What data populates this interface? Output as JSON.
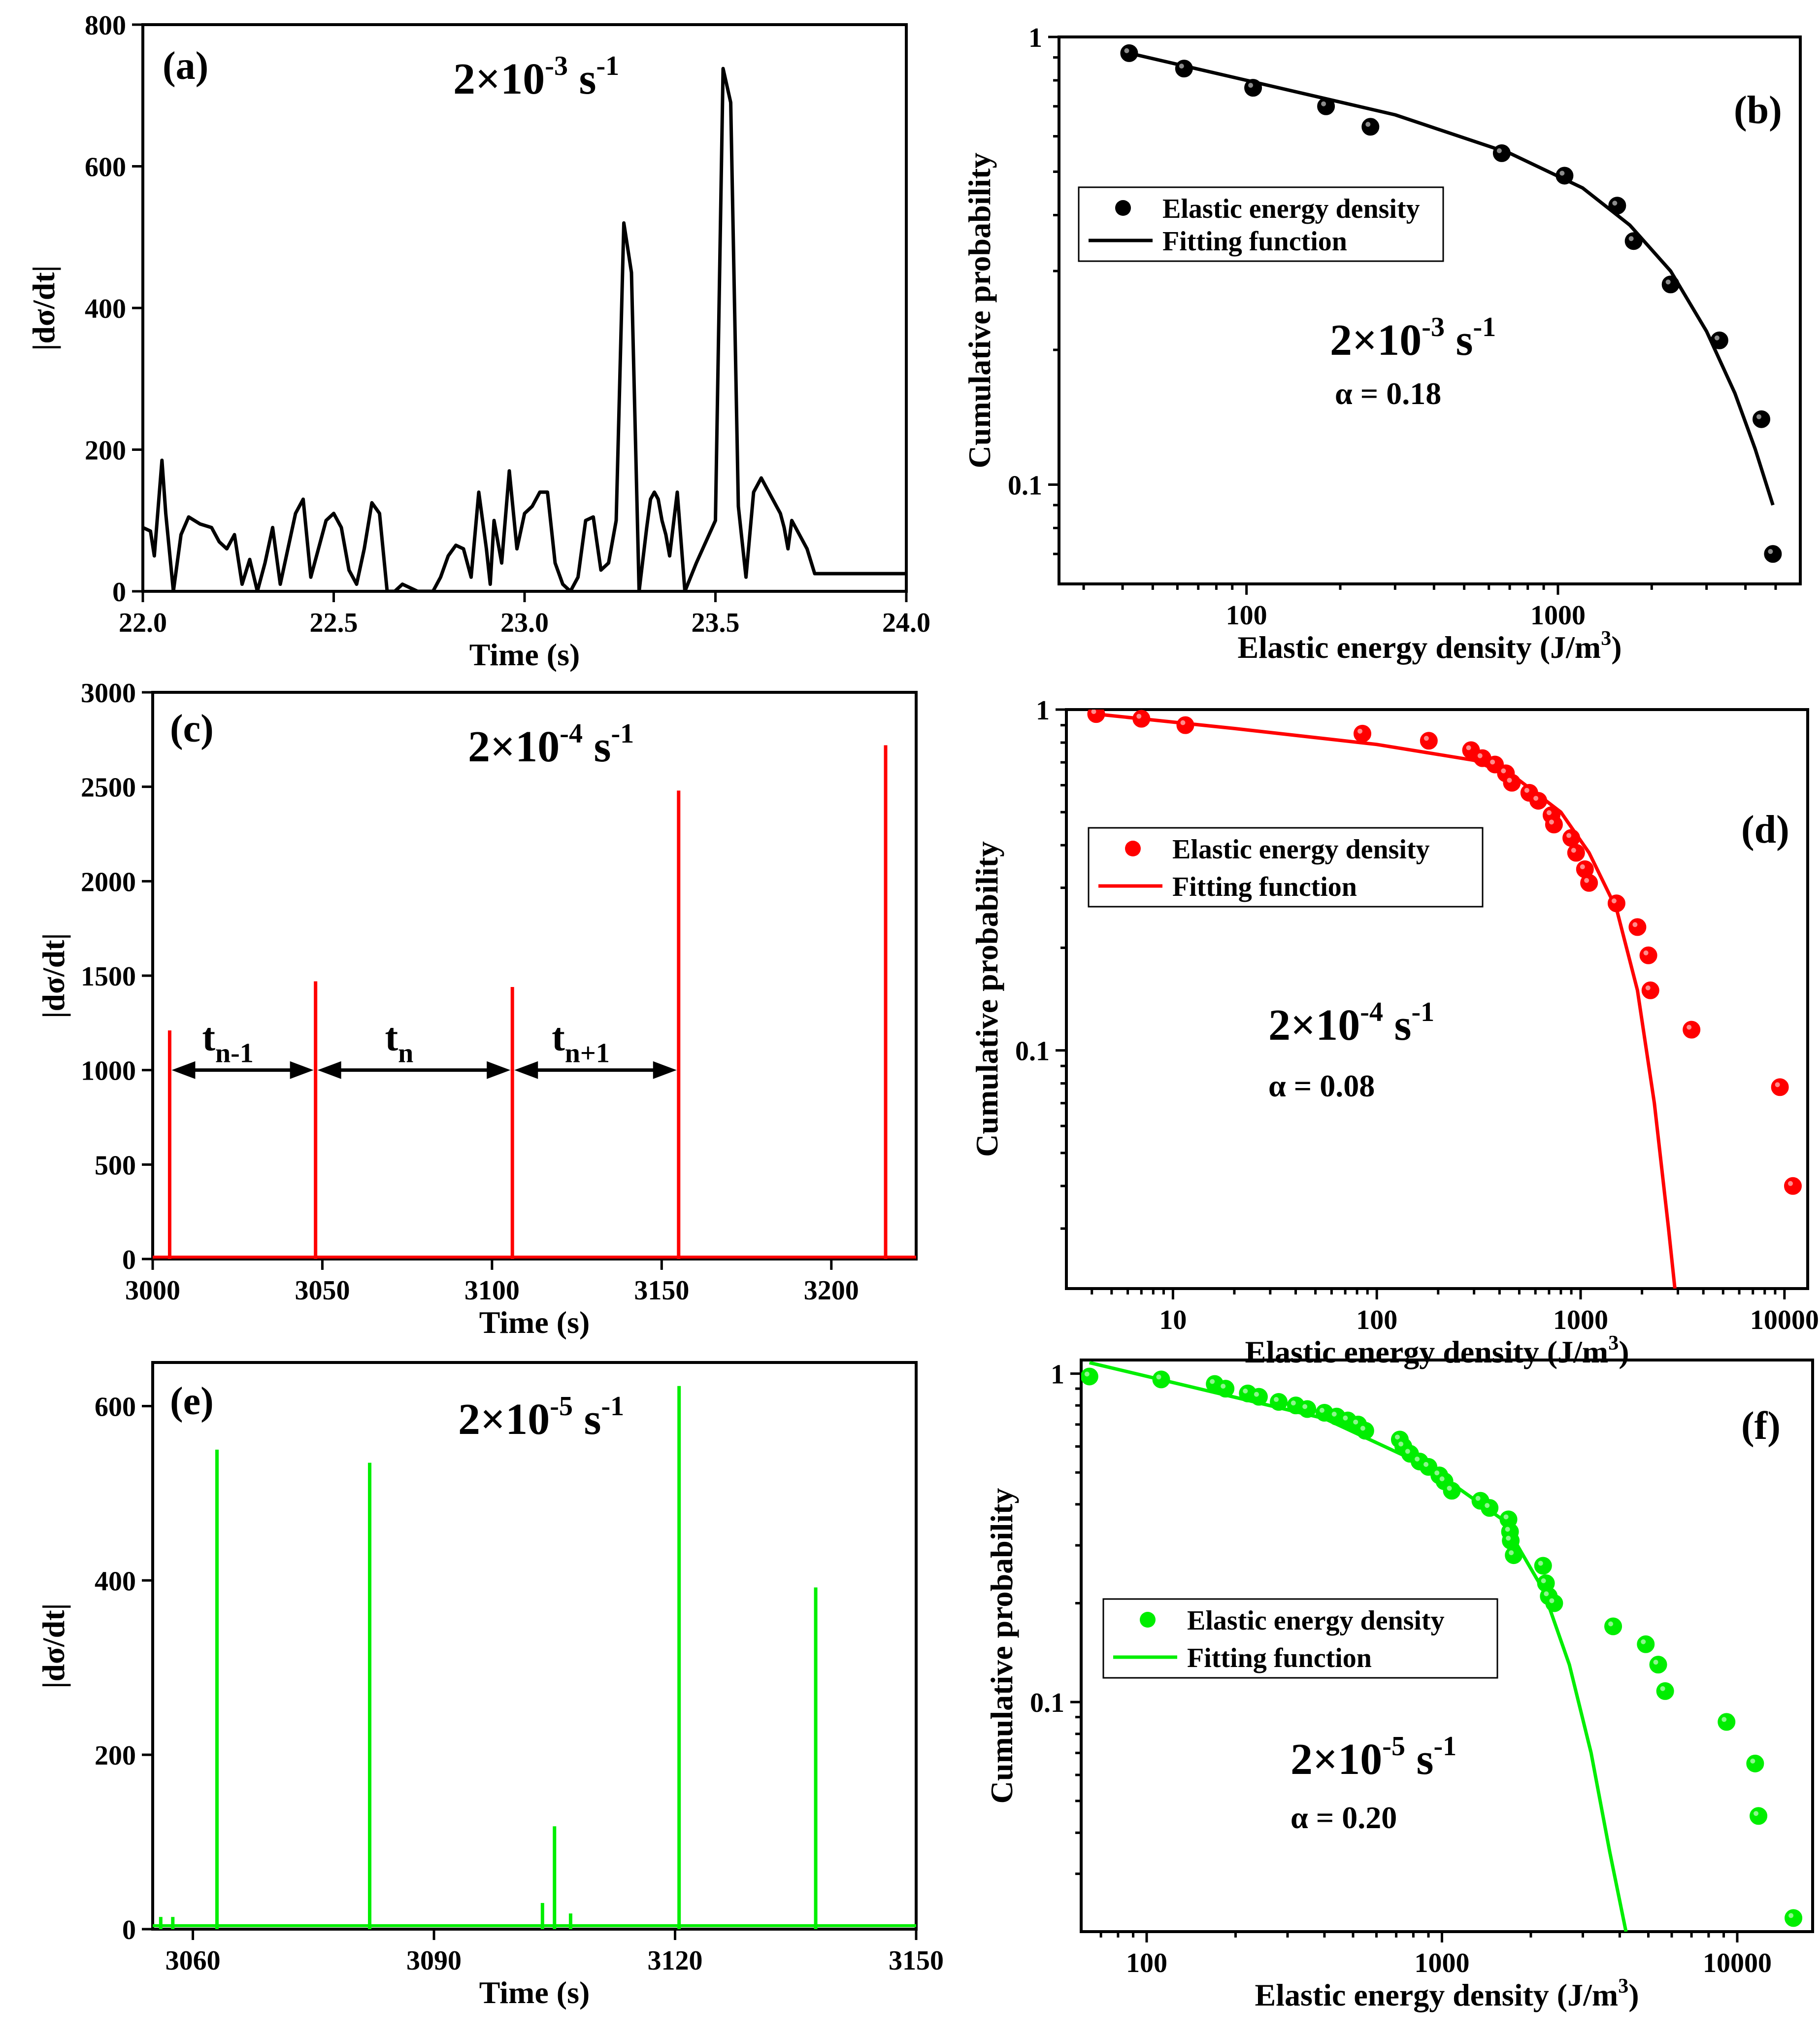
{
  "chart_data": [
    {
      "id": "a",
      "type": "line",
      "panel_label": "(a)",
      "rate_base": "2×10",
      "rate_exp": "-3",
      "rate_unit": " s",
      "rate_unit_exp": "-1",
      "xlabel": "Time (s)",
      "ylabel": "|dσ/dt|",
      "xlim": [
        22.0,
        24.0
      ],
      "ylim": [
        0,
        800
      ],
      "xticks": [
        22.0,
        22.5,
        23.0,
        23.5,
        24.0
      ],
      "xtick_labels": [
        "22.0",
        "22.5",
        "23.0",
        "23.5",
        "24.0"
      ],
      "yticks": [
        0,
        200,
        400,
        600,
        800
      ],
      "ytick_labels": [
        "0",
        "200",
        "400",
        "600",
        "800"
      ],
      "color": "#000000",
      "series": [
        {
          "x": [
            22.0,
            22.02,
            22.03,
            22.05,
            22.06,
            22.08,
            22.1,
            22.12,
            22.15,
            22.18,
            22.2,
            22.22,
            22.24,
            22.26,
            22.28,
            22.3,
            22.32,
            22.34,
            22.36,
            22.38,
            22.4,
            22.42,
            22.44,
            22.46,
            22.48,
            22.5,
            22.52,
            22.54,
            22.56,
            22.58,
            22.6,
            22.62,
            22.64,
            22.66,
            22.68,
            22.7,
            22.72,
            22.74,
            22.76,
            22.78,
            22.8,
            22.82,
            22.84,
            22.86,
            22.88,
            22.9,
            22.91,
            22.92,
            22.94,
            22.96,
            22.98,
            23.0,
            23.02,
            23.04,
            23.06,
            23.08,
            23.1,
            23.12,
            23.14,
            23.16,
            23.18,
            23.2,
            23.22,
            23.24,
            23.26,
            23.28,
            23.3,
            23.32,
            23.33,
            23.34,
            23.35,
            23.36,
            23.37,
            23.38,
            23.4,
            23.42,
            23.45,
            23.5,
            23.52,
            23.54,
            23.56,
            23.58,
            23.6,
            23.62,
            23.64,
            23.66,
            23.67,
            23.68,
            23.69,
            23.7,
            23.72,
            23.74,
            23.76,
            23.8,
            23.85,
            23.9,
            23.95,
            23.98,
            24.0
          ],
          "y": [
            90,
            85,
            50,
            185,
            110,
            0,
            80,
            105,
            95,
            90,
            70,
            60,
            80,
            10,
            45,
            0,
            40,
            90,
            10,
            60,
            110,
            130,
            20,
            60,
            100,
            110,
            90,
            30,
            10,
            60,
            125,
            110,
            0,
            0,
            10,
            5,
            0,
            0,
            0,
            20,
            50,
            65,
            60,
            20,
            140,
            60,
            10,
            100,
            40,
            170,
            60,
            110,
            120,
            140,
            140,
            40,
            10,
            0,
            20,
            100,
            105,
            30,
            40,
            100,
            520,
            450,
            0,
            90,
            130,
            140,
            130,
            100,
            80,
            50,
            140,
            0,
            40,
            100,
            738,
            690,
            120,
            20,
            140,
            160,
            140,
            120,
            110,
            90,
            60,
            100,
            80,
            60,
            25,
            25,
            25,
            25,
            25,
            25,
            25
          ]
        }
      ]
    },
    {
      "id": "b",
      "type": "scatter",
      "panel_label": "(b)",
      "rate_base": "2×10",
      "rate_exp": "-3",
      "rate_unit": " s",
      "rate_unit_exp": "-1",
      "alpha_text": "α = 0.18",
      "xlabel": "Elastic energy density (J/m",
      "xlabel_sup": "3",
      "xlabel_end": ")",
      "ylabel": "Cumulative probability",
      "xscale": "log",
      "yscale": "log",
      "xlim": [
        25,
        6000
      ],
      "ylim": [
        0.06,
        1.0
      ],
      "xticks": [
        100,
        1000
      ],
      "xtick_labels": [
        "100",
        "1000"
      ],
      "yticks": [
        0.1,
        1
      ],
      "ytick_labels": [
        "0.1",
        "1"
      ],
      "color": "#000000",
      "legend": [
        "Elastic energy density",
        "Fitting function"
      ],
      "points": {
        "x": [
          42,
          63,
          105,
          180,
          250,
          660,
          1050,
          1550,
          1750,
          2300,
          3300,
          4500,
          4900
        ],
        "y": [
          0.92,
          0.85,
          0.77,
          0.7,
          0.63,
          0.55,
          0.49,
          0.42,
          0.35,
          0.28,
          0.21,
          0.14,
          0.07
        ]
      },
      "fit": {
        "x": [
          42,
          100,
          300,
          700,
          1200,
          1700,
          2300,
          3000,
          3700,
          4300,
          4900
        ],
        "y": [
          0.92,
          0.8,
          0.67,
          0.55,
          0.46,
          0.38,
          0.3,
          0.22,
          0.16,
          0.12,
          0.09
        ]
      }
    },
    {
      "id": "c",
      "type": "line",
      "panel_label": "(c)",
      "rate_base": "2×10",
      "rate_exp": "-4",
      "rate_unit": " s",
      "rate_unit_exp": "-1",
      "xlabel": "Time (s)",
      "ylabel": "|dσ/dt|",
      "xlim": [
        3000,
        3225
      ],
      "ylim": [
        0,
        3000
      ],
      "xticks": [
        3000,
        3050,
        3100,
        3150,
        3200
      ],
      "xtick_labels": [
        "3000",
        "3050",
        "3100",
        "3150",
        "3200"
      ],
      "yticks": [
        0,
        500,
        1000,
        1500,
        2000,
        2500,
        3000
      ],
      "ytick_labels": [
        "0",
        "500",
        "1000",
        "1500",
        "2000",
        "2500",
        "3000"
      ],
      "color": "#ff0000",
      "spikes": {
        "x": [
          3005,
          3048,
          3106,
          3155,
          3216
        ],
        "y": [
          1210,
          1470,
          1440,
          2480,
          2720
        ]
      },
      "baseline": 10,
      "intervals": [
        {
          "label": "t",
          "sub": "n-1",
          "from": 3005,
          "to": 3048,
          "y": 1000
        },
        {
          "label": "t",
          "sub": "n",
          "from": 3048,
          "to": 3106,
          "y": 1000
        },
        {
          "label": "t",
          "sub": "n+1",
          "from": 3106,
          "to": 3155,
          "y": 1000
        }
      ]
    },
    {
      "id": "d",
      "type": "scatter",
      "panel_label": "(d)",
      "rate_base": "2×10",
      "rate_exp": "-4",
      "rate_unit": " s",
      "rate_unit_exp": "-1",
      "alpha_text": "α = 0.08",
      "xlabel": "Elastic energy density (J/m",
      "xlabel_sup": "3",
      "xlabel_end": ")",
      "ylabel": "Cumulative probability",
      "xscale": "log",
      "yscale": "log",
      "xlim": [
        3,
        13000
      ],
      "ylim": [
        0.02,
        1.0
      ],
      "xticks": [
        10,
        100,
        1000,
        10000
      ],
      "xtick_labels": [
        "10",
        "100",
        "1000",
        "10000"
      ],
      "yticks": [
        0.1,
        1
      ],
      "ytick_labels": [
        "0.1",
        "1"
      ],
      "color": "#ff0000",
      "legend": [
        "Elastic energy density",
        "Fitting function"
      ],
      "points": {
        "x": [
          4.2,
          7,
          11.5,
          85,
          180,
          290,
          330,
          380,
          430,
          460,
          560,
          620,
          720,
          740,
          900,
          950,
          1050,
          1100,
          1500,
          1900,
          2150,
          2200,
          3500,
          9500,
          11000
        ],
        "y": [
          0.97,
          0.94,
          0.9,
          0.85,
          0.81,
          0.76,
          0.72,
          0.69,
          0.65,
          0.61,
          0.57,
          0.54,
          0.49,
          0.46,
          0.42,
          0.38,
          0.34,
          0.31,
          0.27,
          0.23,
          0.19,
          0.15,
          0.115,
          0.078,
          0.04
        ]
      },
      "fit": {
        "x": [
          4.2,
          20,
          100,
          300,
          500,
          800,
          1100,
          1500,
          1900,
          2300,
          2700,
          2900
        ],
        "y": [
          0.97,
          0.88,
          0.79,
          0.71,
          0.62,
          0.5,
          0.38,
          0.26,
          0.15,
          0.07,
          0.03,
          0.02
        ]
      }
    },
    {
      "id": "e",
      "type": "line",
      "panel_label": "(e)",
      "rate_base": "2×10",
      "rate_exp": "-5",
      "rate_unit": " s",
      "rate_unit_exp": "-1",
      "xlabel": "Time (s)",
      "ylabel": "|dσ/dt|",
      "xlim": [
        3055,
        3150
      ],
      "ylim": [
        0,
        650
      ],
      "xticks": [
        3060,
        3090,
        3120,
        3150
      ],
      "xtick_labels": [
        "3060",
        "3090",
        "3120",
        "3150"
      ],
      "yticks": [
        0,
        200,
        400,
        600
      ],
      "ytick_labels": [
        "0",
        "200",
        "400",
        "600"
      ],
      "color": "#00ee00",
      "spikes": {
        "x": [
          3056,
          3057.5,
          3063,
          3082,
          3103.5,
          3105,
          3107,
          3120.5,
          3137.5
        ],
        "y": [
          14,
          14,
          550,
          535,
          30,
          118,
          18,
          623,
          392
        ]
      },
      "baseline": 4
    },
    {
      "id": "f",
      "type": "scatter",
      "panel_label": "(f)",
      "rate_base": "2×10",
      "rate_exp": "-5",
      "rate_unit": " s",
      "rate_unit_exp": "-1",
      "alpha_text": "α = 0.20",
      "xlabel": "Elastic energy density (J/m",
      "xlabel_sup": "3",
      "xlabel_end": ")",
      "ylabel": "Cumulative probability",
      "xscale": "log",
      "yscale": "log",
      "xlim": [
        60,
        18000
      ],
      "ylim": [
        0.02,
        1.1
      ],
      "xticks": [
        100,
        1000,
        10000
      ],
      "xtick_labels": [
        "100",
        "1000",
        "10000"
      ],
      "yticks": [
        0.1,
        1
      ],
      "ytick_labels": [
        "0.1",
        "1"
      ],
      "color": "#00ee00",
      "legend": [
        "Elastic energy density",
        "Fitting function"
      ],
      "points": {
        "x": [
          64,
          112,
          170,
          185,
          220,
          240,
          280,
          320,
          350,
          400,
          440,
          480,
          520,
          550,
          720,
          740,
          780,
          840,
          900,
          980,
          1020,
          1080,
          1350,
          1450,
          1680,
          1700,
          1710,
          1750,
          2200,
          2250,
          2300,
          2400,
          3800,
          4900,
          5400,
          5700,
          9200,
          11500,
          11800,
          15500
        ],
        "y": [
          0.98,
          0.96,
          0.93,
          0.9,
          0.87,
          0.85,
          0.82,
          0.8,
          0.78,
          0.76,
          0.74,
          0.72,
          0.7,
          0.67,
          0.63,
          0.6,
          0.57,
          0.54,
          0.52,
          0.49,
          0.47,
          0.44,
          0.41,
          0.39,
          0.36,
          0.33,
          0.31,
          0.28,
          0.26,
          0.23,
          0.21,
          0.2,
          0.17,
          0.15,
          0.13,
          0.108,
          0.087,
          0.065,
          0.045,
          0.022
        ]
      },
      "fit": {
        "x": [
          64,
          150,
          400,
          900,
          1600,
          2200,
          2700,
          3200,
          3700,
          4200
        ],
        "y": [
          1.08,
          0.9,
          0.73,
          0.52,
          0.36,
          0.22,
          0.13,
          0.07,
          0.035,
          0.02
        ]
      }
    }
  ]
}
